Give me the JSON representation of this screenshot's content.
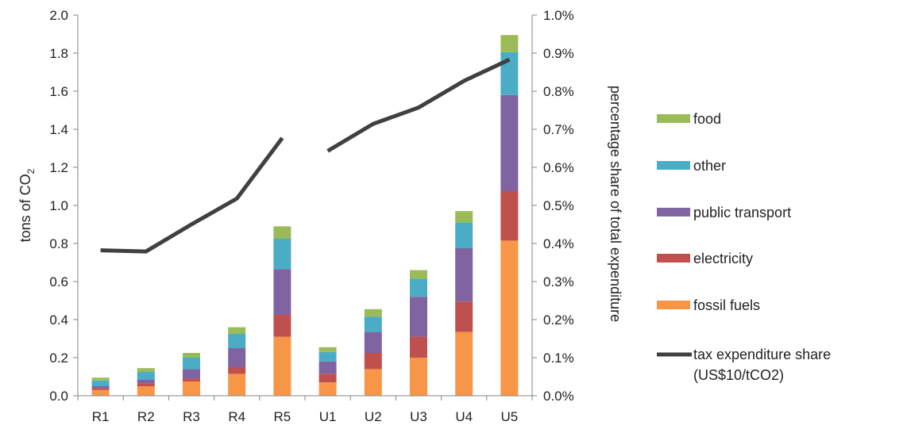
{
  "chart_data": {
    "type": "bar",
    "stacked": true,
    "categories": [
      "R1",
      "R2",
      "R3",
      "R4",
      "R5",
      "U1",
      "U2",
      "U3",
      "U4",
      "U5"
    ],
    "series": [
      {
        "name": "fossil fuels",
        "color": "#f79646",
        "values": [
          0.03,
          0.05,
          0.075,
          0.115,
          0.31,
          0.07,
          0.14,
          0.2,
          0.335,
          0.815
        ]
      },
      {
        "name": "electricity",
        "color": "#c0504d",
        "values": [
          0.01,
          0.015,
          0.015,
          0.035,
          0.115,
          0.045,
          0.085,
          0.11,
          0.16,
          0.26
        ]
      },
      {
        "name": "public transport",
        "color": "#8064a2",
        "values": [
          0.01,
          0.02,
          0.05,
          0.1,
          0.24,
          0.065,
          0.11,
          0.21,
          0.28,
          0.505
        ]
      },
      {
        "name": "other",
        "color": "#4bacc6",
        "values": [
          0.03,
          0.04,
          0.06,
          0.075,
          0.16,
          0.05,
          0.08,
          0.095,
          0.135,
          0.225
        ]
      },
      {
        "name": "food",
        "color": "#9bbb59",
        "values": [
          0.015,
          0.02,
          0.025,
          0.035,
          0.065,
          0.025,
          0.04,
          0.045,
          0.06,
          0.09
        ]
      }
    ],
    "line_series": {
      "name": "tax expenditure share (US$10/tCO2)",
      "color": "#404040",
      "axis": "secondary",
      "segments": [
        {
          "categories": [
            "R1",
            "R2",
            "R3",
            "R4",
            "R5"
          ],
          "values": [
            0.382,
            0.379,
            0.45,
            0.518,
            0.677
          ]
        },
        {
          "categories": [
            "U1",
            "U2",
            "U3",
            "U4",
            "U5"
          ],
          "values": [
            0.643,
            0.714,
            0.757,
            0.827,
            0.883
          ]
        }
      ]
    },
    "ylabel": "tons of CO",
    "ylabel_sub": "2",
    "y2label": "percentage share of total expenditure",
    "ylim": [
      0,
      2.0
    ],
    "y2lim": [
      0,
      1.0
    ],
    "yticks": [
      "0.0",
      "0.2",
      "0.4",
      "0.6",
      "0.8",
      "1.0",
      "1.2",
      "1.4",
      "1.6",
      "1.8",
      "2.0"
    ],
    "y2ticks": [
      "0.0%",
      "0.1%",
      "0.2%",
      "0.3%",
      "0.4%",
      "0.5%",
      "0.6%",
      "0.7%",
      "0.8%",
      "0.9%",
      "1.0%"
    ],
    "legend": {
      "position": "right",
      "items": [
        "food",
        "other",
        "public transport",
        "electricity",
        "fossil fuels"
      ],
      "line_label_lines": [
        "tax expenditure share",
        "(US$10/tCO2)"
      ]
    },
    "grid": false
  }
}
